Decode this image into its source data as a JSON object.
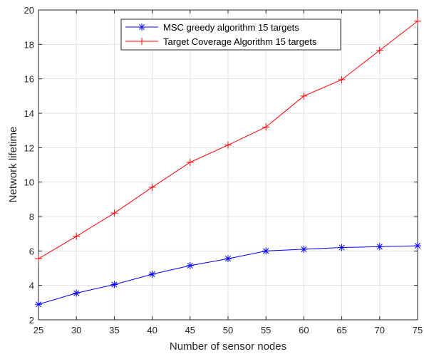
{
  "chart_data": {
    "type": "line",
    "xlabel": "Number of sensor nodes",
    "ylabel": "Network lifetime",
    "xlim": [
      25,
      75
    ],
    "ylim": [
      2,
      20
    ],
    "xticks": [
      "25",
      "30",
      "35",
      "40",
      "45",
      "50",
      "55",
      "60",
      "65",
      "70",
      "75"
    ],
    "yticks": [
      "2",
      "4",
      "6",
      "8",
      "10",
      "12",
      "14",
      "16",
      "18",
      "20"
    ],
    "grid": true,
    "legend_position": "top-center",
    "x": [
      25,
      30,
      35,
      40,
      45,
      50,
      55,
      60,
      65,
      70,
      75
    ],
    "series": [
      {
        "name": "MSC greedy algorithm 15 targets",
        "color": "#0000ff",
        "marker": "asterisk",
        "values": [
          2.9,
          3.55,
          4.05,
          4.65,
          5.15,
          5.55,
          6.0,
          6.1,
          6.2,
          6.25,
          6.3
        ]
      },
      {
        "name": "Target Coverage Algorithm 15 targets",
        "color": "#ff0000",
        "marker": "plus",
        "values": [
          5.55,
          6.85,
          8.2,
          9.7,
          11.15,
          12.15,
          13.2,
          15.0,
          15.95,
          17.65,
          19.35
        ]
      }
    ]
  }
}
